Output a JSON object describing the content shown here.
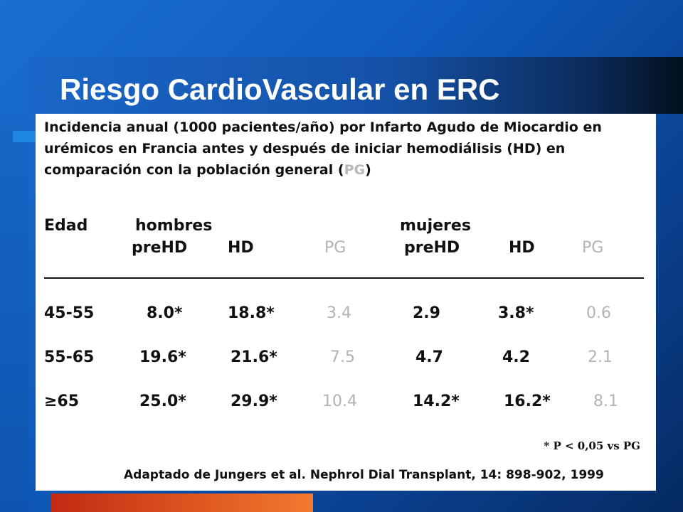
{
  "slide": {
    "title": "Riesgo CardioVascular en ERC"
  },
  "intro": {
    "text_before": "Incidencia anual (1000 pacientes/año) por Infarto Agudo de Miocardio en urémicos en Francia antes y después de iniciar hemodiálisis (HD) en comparación con la población general (",
    "pg": "PG",
    "text_after": ")"
  },
  "table": {
    "age_header": "Edad",
    "group_men": "hombres",
    "group_women": "mujeres",
    "sub_headers": [
      "preHD",
      "HD",
      "PG",
      "preHD",
      "HD",
      "PG"
    ],
    "rows": [
      {
        "age": "45-55",
        "values": [
          "8.0*",
          "18.8*",
          "3.4",
          "2.9",
          "3.8*",
          "0.6"
        ]
      },
      {
        "age": "55-65",
        "values": [
          "19.6*",
          "21.6*",
          "7.5",
          "4.7",
          "4.2",
          "2.1"
        ]
      },
      {
        "age": "≥65",
        "values": [
          "25.0*",
          "29.9*",
          "10.4",
          "14.2*",
          "16.2*",
          "8.1"
        ]
      }
    ]
  },
  "footnote": "* P < 0,05 vs PG",
  "source": "Adaptado de Jungers et al. Nephrol Dial Transplant, 14: 898-902, 1999",
  "colors": {
    "background": "#0e5bbd",
    "pg_text": "#b3b3b3",
    "accent_orange": "#e05a20"
  }
}
